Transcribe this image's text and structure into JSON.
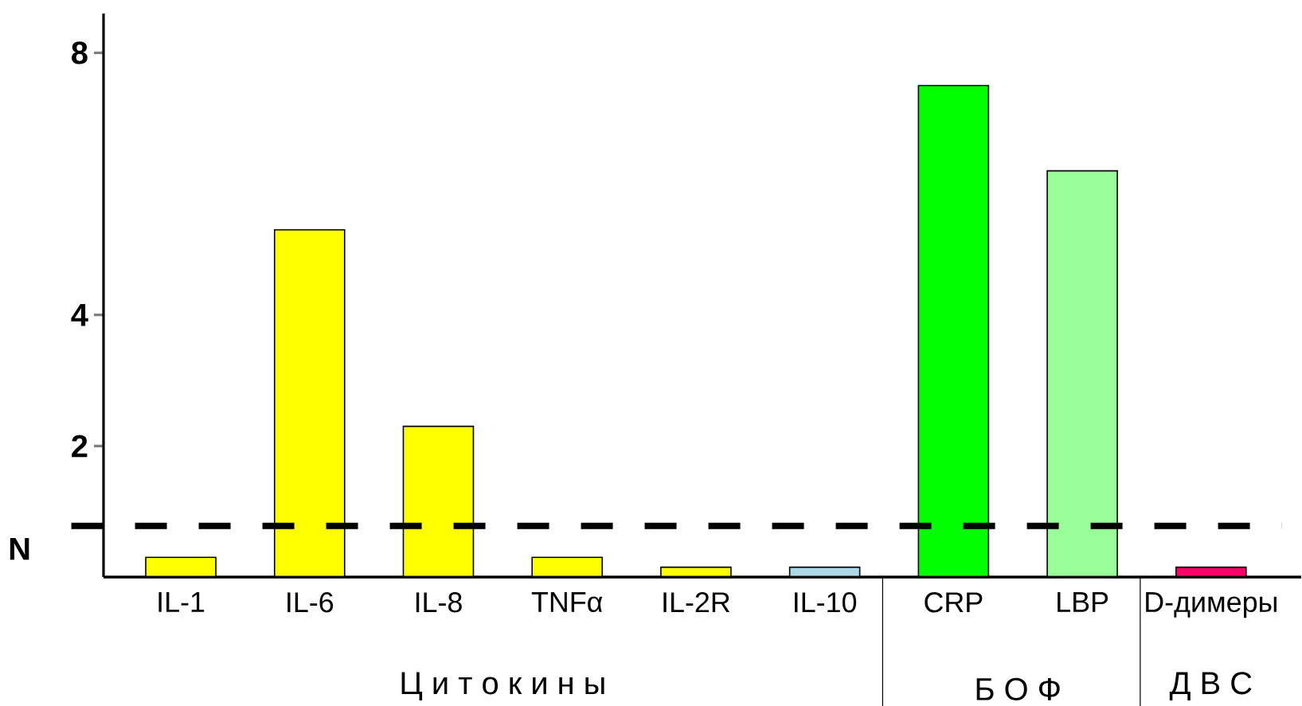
{
  "chart_data": {
    "type": "bar",
    "categories": [
      "IL-1",
      "IL-6",
      "IL-8",
      "TNFα",
      "IL-2R",
      "IL-10",
      "CRP",
      "LBP",
      "D-димеры"
    ],
    "values": [
      0.3,
      5.3,
      2.3,
      0.3,
      0.15,
      0.15,
      7.5,
      6.2,
      0.15
    ],
    "colors": [
      "#ffff00",
      "#ffff00",
      "#ffff00",
      "#ffff00",
      "#ffff00",
      "#add8e6",
      "#00ff00",
      "#99ff99",
      "#ff0066"
    ],
    "ylim": [
      0,
      8.6
    ],
    "yticks": [
      2,
      4,
      8
    ],
    "ref_lines": [
      {
        "axis": "y",
        "value": 0.78,
        "label": "N",
        "color": "#000000",
        "line_style": "dashed"
      }
    ],
    "annotations": [
      "Ц и т о к и н ы",
      "Б О Ф",
      "Д В С"
    ]
  }
}
